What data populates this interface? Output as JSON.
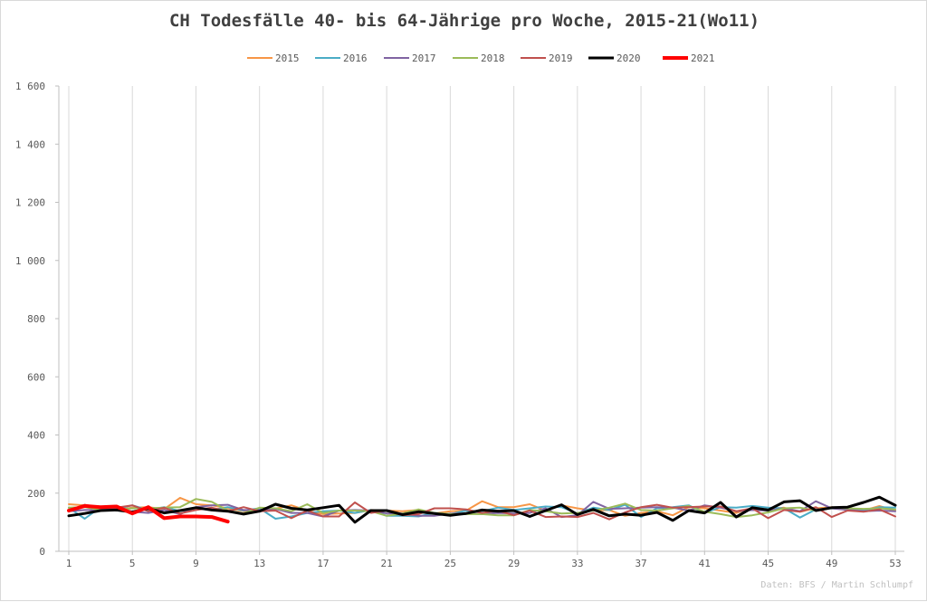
{
  "chart_data": {
    "type": "line",
    "title": "CH Todesfälle 40- bis 64-Jährige pro Woche, 2015-21(Wo11)",
    "xlabel": "",
    "ylabel": "",
    "xlim": [
      1,
      53
    ],
    "ylim": [
      0,
      1600
    ],
    "x_ticks": [
      1,
      5,
      9,
      13,
      17,
      21,
      25,
      29,
      33,
      37,
      41,
      45,
      49,
      53
    ],
    "y_ticks": [
      0,
      200,
      400,
      600,
      800,
      1000,
      1200,
      1400,
      1600
    ],
    "y_tick_labels": [
      "0",
      "200",
      "400",
      "600",
      "800",
      "1 000",
      "1 200",
      "1 400",
      "1 600"
    ],
    "grid": "vertical",
    "legend_position": "top",
    "source": "Daten: BFS / Martin Schlumpf",
    "series": [
      {
        "name": "2015",
        "color": "#f79646",
        "width": 2,
        "values": [
          162,
          158,
          152,
          143,
          150,
          152,
          145,
          184,
          162,
          158,
          148,
          138,
          140,
          147,
          158,
          140,
          128,
          130,
          132,
          142,
          140,
          138,
          142,
          130,
          138,
          140,
          172,
          152,
          152,
          162,
          140,
          158,
          148,
          140,
          142,
          122,
          132,
          138,
          124,
          152,
          148,
          140,
          132,
          148,
          144,
          150,
          136,
          148,
          152,
          142,
          140,
          156,
          140
        ]
      },
      {
        "name": "2016",
        "color": "#4bacc6",
        "width": 2,
        "values": [
          150,
          112,
          152,
          146,
          158,
          142,
          152,
          138,
          148,
          142,
          152,
          140,
          148,
          112,
          120,
          132,
          138,
          140,
          132,
          142,
          122,
          122,
          120,
          132,
          128,
          140,
          138,
          150,
          142,
          148,
          154,
          152,
          130,
          150,
          142,
          160,
          118,
          148,
          152,
          158,
          132,
          152,
          150,
          156,
          150,
          148,
          116,
          144,
          148,
          144,
          140,
          152,
          150
        ]
      },
      {
        "name": "2017",
        "color": "#8064a2",
        "width": 2,
        "values": [
          138,
          142,
          142,
          152,
          136,
          132,
          142,
          128,
          152,
          158,
          160,
          142,
          142,
          146,
          132,
          132,
          120,
          140,
          142,
          140,
          130,
          130,
          122,
          122,
          130,
          130,
          128,
          132,
          130,
          132,
          148,
          118,
          124,
          170,
          146,
          148,
          150,
          152,
          150,
          140,
          158,
          150,
          138,
          142,
          140,
          148,
          138,
          172,
          148,
          142,
          138,
          140,
          138
        ]
      },
      {
        "name": "2018",
        "color": "#9bbb59",
        "width": 2,
        "values": [
          150,
          152,
          142,
          142,
          148,
          148,
          150,
          152,
          180,
          170,
          140,
          130,
          150,
          148,
          138,
          162,
          132,
          140,
          140,
          138,
          122,
          130,
          144,
          132,
          128,
          128,
          128,
          124,
          124,
          142,
          138,
          130,
          132,
          140,
          150,
          164,
          142,
          140,
          148,
          156,
          136,
          128,
          118,
          124,
          134,
          148,
          150,
          140,
          150,
          148,
          146,
          148,
          144
        ]
      },
      {
        "name": "2019",
        "color": "#c0504d",
        "width": 2,
        "values": [
          140,
          160,
          150,
          150,
          158,
          138,
          150,
          130,
          142,
          150,
          138,
          152,
          138,
          140,
          114,
          140,
          120,
          120,
          168,
          132,
          140,
          124,
          128,
          148,
          148,
          144,
          132,
          140,
          124,
          140,
          118,
          120,
          118,
          132,
          110,
          134,
          152,
          160,
          150,
          152,
          154,
          154,
          138,
          148,
          114,
          142,
          136,
          152,
          118,
          140,
          136,
          144,
          120
        ]
      },
      {
        "name": "2020",
        "color": "#000000",
        "width": 3,
        "values": [
          122,
          130,
          140,
          142,
          135,
          148,
          132,
          140,
          150,
          142,
          138,
          128,
          138,
          162,
          148,
          142,
          150,
          158,
          100,
          140,
          140,
          126,
          136,
          130,
          124,
          130,
          142,
          138,
          140,
          120,
          140,
          160,
          126,
          144,
          122,
          128,
          124,
          134,
          106,
          140,
          132,
          168,
          118,
          150,
          142,
          170,
          174,
          140,
          150,
          152,
          168,
          186,
          158
        ]
      },
      {
        "name": "2021",
        "color": "#ff0000",
        "width": 4,
        "values": [
          140,
          156,
          152,
          154,
          130,
          152,
          114,
          120,
          120,
          118,
          102
        ]
      }
    ]
  }
}
